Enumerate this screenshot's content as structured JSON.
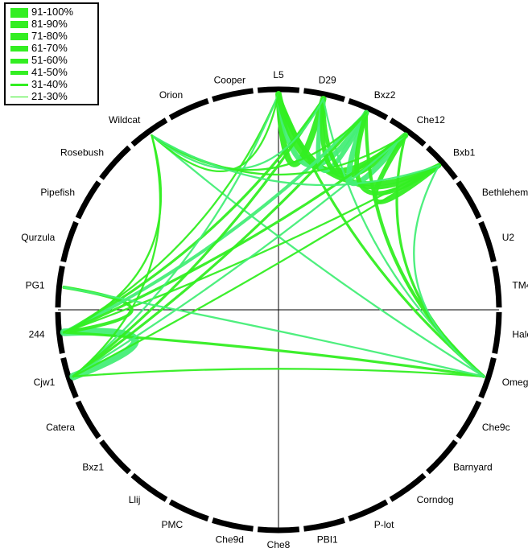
{
  "legend": {
    "items": [
      {
        "label": "91-100%",
        "weight": 10
      },
      {
        "label": "81-90%",
        "weight": 8
      },
      {
        "label": "71-80%",
        "weight": 7
      },
      {
        "label": "61-70%",
        "weight": 6
      },
      {
        "label": "51-60%",
        "weight": 5
      },
      {
        "label": "41-50%",
        "weight": 4
      },
      {
        "label": "31-40%",
        "weight": 2
      },
      {
        "label": "21-30%",
        "weight": 1
      }
    ]
  },
  "nodes": [
    "L5",
    "D29",
    "Bxz2",
    "Che12",
    "Bxb1",
    "Bethlehem",
    "U2",
    "TM4",
    "Halo",
    "Omega",
    "Che9c",
    "Barnyard",
    "Corndog",
    "P-lot",
    "PBI1",
    "Che8",
    "Che9d",
    "PMC",
    "Llij",
    "Bxz1",
    "Catera",
    "Cjw1",
    "244",
    "PG1",
    "Qurzula",
    "Pipefish",
    "Rosebush",
    "Wildcat",
    "Orion",
    "Cooper"
  ],
  "colors": {
    "ring": "#000000",
    "edge": "#33ee22",
    "edge_alt": "#44ee77",
    "axes": "#000000"
  },
  "connections": [
    {
      "from": "L5",
      "to": "D29",
      "weight": 8
    },
    {
      "from": "L5",
      "to": "Bxz2",
      "weight": 7
    },
    {
      "from": "L5",
      "to": "Che12",
      "weight": 8
    },
    {
      "from": "L5",
      "to": "Bxb1",
      "weight": 6
    },
    {
      "from": "D29",
      "to": "Bxz2",
      "weight": 6
    },
    {
      "from": "D29",
      "to": "Che12",
      "weight": 6
    },
    {
      "from": "D29",
      "to": "Bxb1",
      "weight": 5
    },
    {
      "from": "Bxz2",
      "to": "Che12",
      "weight": 7
    },
    {
      "from": "Bxz2",
      "to": "Bxb1",
      "weight": 6
    },
    {
      "from": "Che12",
      "to": "Bxb1",
      "weight": 6
    },
    {
      "from": "244",
      "to": "Cjw1",
      "weight": 10
    },
    {
      "from": "244",
      "to": "PG1",
      "weight": 4
    },
    {
      "from": "Omega",
      "to": "L5",
      "weight": 3
    },
    {
      "from": "Omega",
      "to": "D29",
      "weight": 2
    },
    {
      "from": "Omega",
      "to": "Bxz2",
      "weight": 4
    },
    {
      "from": "Omega",
      "to": "Che12",
      "weight": 3
    },
    {
      "from": "Omega",
      "to": "Bxb1",
      "weight": 2
    },
    {
      "from": "Omega",
      "to": "244",
      "weight": 3
    },
    {
      "from": "Omega",
      "to": "Cjw1",
      "weight": 2
    },
    {
      "from": "Omega",
      "to": "Wildcat",
      "weight": 2
    },
    {
      "from": "244",
      "to": "L5",
      "weight": 2
    },
    {
      "from": "244",
      "to": "D29",
      "weight": 3
    },
    {
      "from": "244",
      "to": "Bxz2",
      "weight": 4
    },
    {
      "from": "244",
      "to": "Che12",
      "weight": 3
    },
    {
      "from": "244",
      "to": "Bxb1",
      "weight": 2
    },
    {
      "from": "Cjw1",
      "to": "L5",
      "weight": 2
    },
    {
      "from": "Cjw1",
      "to": "D29",
      "weight": 3
    },
    {
      "from": "Cjw1",
      "to": "Bxz2",
      "weight": 3
    },
    {
      "from": "Cjw1",
      "to": "Che12",
      "weight": 2
    },
    {
      "from": "Cjw1",
      "to": "Bxb1",
      "weight": 2
    },
    {
      "from": "Wildcat",
      "to": "L5",
      "weight": 2
    },
    {
      "from": "Wildcat",
      "to": "D29",
      "weight": 2
    },
    {
      "from": "Wildcat",
      "to": "Bxz2",
      "weight": 2
    },
    {
      "from": "Wildcat",
      "to": "Che12",
      "weight": 2
    },
    {
      "from": "Wildcat",
      "to": "Bxb1",
      "weight": 2
    },
    {
      "from": "Wildcat",
      "to": "244",
      "weight": 2
    },
    {
      "from": "Wildcat",
      "to": "Cjw1",
      "weight": 2
    },
    {
      "from": "Omega",
      "to": "PG1",
      "weight": 2
    }
  ]
}
